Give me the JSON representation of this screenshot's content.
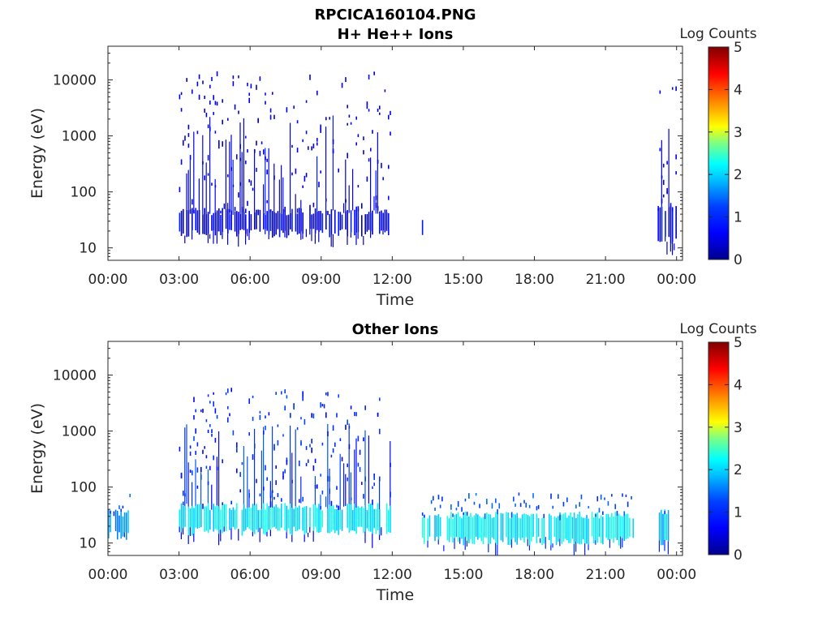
{
  "figure_title": "RPCICA160104.PNG",
  "colors": {
    "colormap": [
      "#00008f",
      "#0000ff",
      "#0080ff",
      "#00ffff",
      "#80ff80",
      "#ffff00",
      "#ff8000",
      "#ff0000",
      "#800000"
    ],
    "axis": "#262626",
    "background": "#ffffff"
  },
  "chart_data": [
    {
      "type": "heatmap",
      "title": "H+ He++ Ions",
      "xlabel": "Time",
      "ylabel": "Energy (eV)",
      "yscale": "log",
      "x_tick_labels": [
        "00:00",
        "03:00",
        "06:00",
        "09:00",
        "12:00",
        "15:00",
        "18:00",
        "21:00",
        "00:00"
      ],
      "x_tick_hours": [
        0,
        3,
        6,
        9,
        12,
        15,
        18,
        21,
        24
      ],
      "xlim_hours": [
        0,
        24.25
      ],
      "y_tick_labels": [
        "10",
        "100",
        "1000",
        "10000"
      ],
      "y_tick_values": [
        10,
        100,
        1000,
        10000
      ],
      "ylim": [
        6,
        40000
      ],
      "colorbar": {
        "label": "Log Counts",
        "ticks": [
          "0",
          "1",
          "2",
          "3",
          "4",
          "5"
        ],
        "range": [
          0,
          5
        ]
      },
      "data_intervals": [
        {
          "start_h": 3.0,
          "end_h": 11.95,
          "core_low_eV": 20,
          "core_high_eV": 45,
          "sparse_top_eV": 15000,
          "core_level": 0.5,
          "scatter_level": 0.3
        },
        {
          "start_h": 13.25,
          "end_h": 13.3,
          "core_low_eV": 18,
          "core_high_eV": 30,
          "sparse_top_eV": 30,
          "core_level": 0.8,
          "scatter_level": 0.3
        },
        {
          "start_h": 23.2,
          "end_h": 24.0,
          "core_low_eV": 15,
          "core_high_eV": 50,
          "sparse_top_eV": 10000,
          "core_level": 0.5,
          "scatter_level": 0.3
        }
      ]
    },
    {
      "type": "heatmap",
      "title": "Other Ions",
      "xlabel": "Time",
      "ylabel": "Energy (eV)",
      "yscale": "log",
      "x_tick_labels": [
        "00:00",
        "03:00",
        "06:00",
        "09:00",
        "12:00",
        "15:00",
        "18:00",
        "21:00",
        "00:00"
      ],
      "x_tick_hours": [
        0,
        3,
        6,
        9,
        12,
        15,
        18,
        21,
        24
      ],
      "xlim_hours": [
        0,
        24.25
      ],
      "y_tick_labels": [
        "10",
        "100",
        "1000",
        "10000"
      ],
      "y_tick_values": [
        10,
        100,
        1000,
        10000
      ],
      "ylim": [
        6,
        40000
      ],
      "colorbar": {
        "label": "Log Counts",
        "ticks": [
          "0",
          "1",
          "2",
          "3",
          "4",
          "5"
        ],
        "range": [
          0,
          5
        ]
      },
      "data_intervals": [
        {
          "start_h": 0.0,
          "end_h": 0.95,
          "core_low_eV": 15,
          "core_high_eV": 35,
          "sparse_top_eV": 80,
          "core_level": 1.4,
          "scatter_level": 0.8
        },
        {
          "start_h": 3.0,
          "end_h": 11.95,
          "core_low_eV": 18,
          "core_high_eV": 45,
          "sparse_top_eV": 6000,
          "core_level": 1.8,
          "scatter_level": 0.6
        },
        {
          "start_h": 13.25,
          "end_h": 22.15,
          "core_low_eV": 12,
          "core_high_eV": 32,
          "sparse_top_eV": 80,
          "core_level": 1.8,
          "scatter_level": 0.8
        },
        {
          "start_h": 23.25,
          "end_h": 23.75,
          "core_low_eV": 12,
          "core_high_eV": 35,
          "sparse_top_eV": 90,
          "core_level": 1.6,
          "scatter_level": 0.8
        }
      ]
    }
  ]
}
